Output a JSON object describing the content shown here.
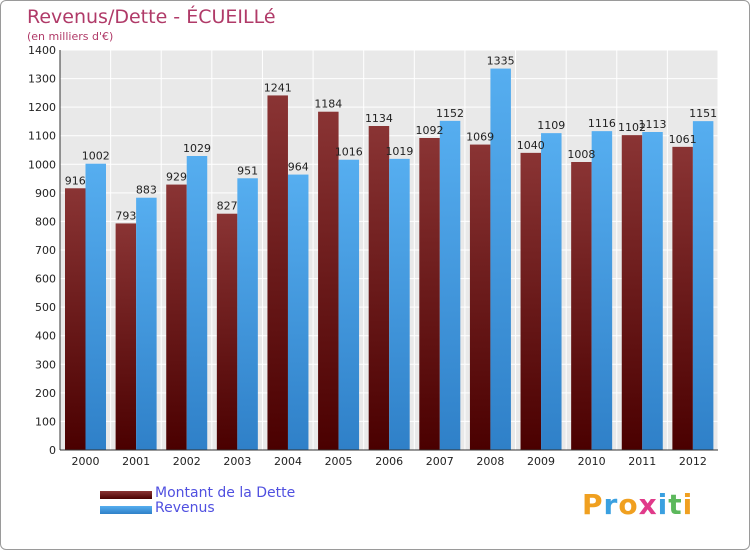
{
  "title": "Revenus/Dette - ÉCUEILLé",
  "subtitle": "(en milliers d'€)",
  "legend": [
    {
      "label": "Montant de la Dette",
      "color": "#6e1a1a"
    },
    {
      "label": "Revenus",
      "color": "#4aa3e6"
    }
  ],
  "logo": {
    "text": "Proxiti",
    "letters": [
      {
        "ch": "P",
        "color": "#f0a020"
      },
      {
        "ch": "r",
        "color": "#3aa0e0"
      },
      {
        "ch": "o",
        "color": "#f0a020"
      },
      {
        "ch": "x",
        "color": "#e03a8a"
      },
      {
        "ch": "i",
        "color": "#3aa0e0"
      },
      {
        "ch": "t",
        "color": "#5cb85c"
      },
      {
        "ch": "i",
        "color": "#f0a020"
      }
    ]
  },
  "chart_data": {
    "type": "bar",
    "categories": [
      "2000",
      "2001",
      "2002",
      "2003",
      "2004",
      "2005",
      "2006",
      "2007",
      "2008",
      "2009",
      "2010",
      "2011",
      "2012"
    ],
    "series": [
      {
        "name": "Montant de la Dette",
        "color": "#7a2424",
        "values": [
          916,
          793,
          929,
          827,
          1241,
          1184,
          1134,
          1092,
          1069,
          1040,
          1008,
          1102,
          1061
        ],
        "labels": [
          "916",
          "793",
          "929",
          "827",
          "1241",
          "1184",
          "1134",
          "1092",
          "1069",
          "1040",
          "1008",
          "1102",
          "1061"
        ]
      },
      {
        "name": "Revenus",
        "color": "#4aa3e6",
        "values": [
          1002,
          883,
          1029,
          951,
          964,
          1016,
          1019,
          1152,
          1335,
          1109,
          1116,
          1113,
          1151
        ],
        "labels": [
          "1002",
          "883",
          "1029",
          "951",
          "964",
          "1016",
          "1019",
          "1152",
          "1335",
          "1109",
          "1116",
          "1113",
          "1151"
        ]
      }
    ],
    "yticks": [
      0,
      100,
      200,
      300,
      400,
      500,
      600,
      700,
      800,
      900,
      1000,
      1100,
      1200,
      1300,
      1400
    ],
    "ylim": [
      0,
      1400
    ],
    "grid": true,
    "legend_position": "bottom-left"
  }
}
